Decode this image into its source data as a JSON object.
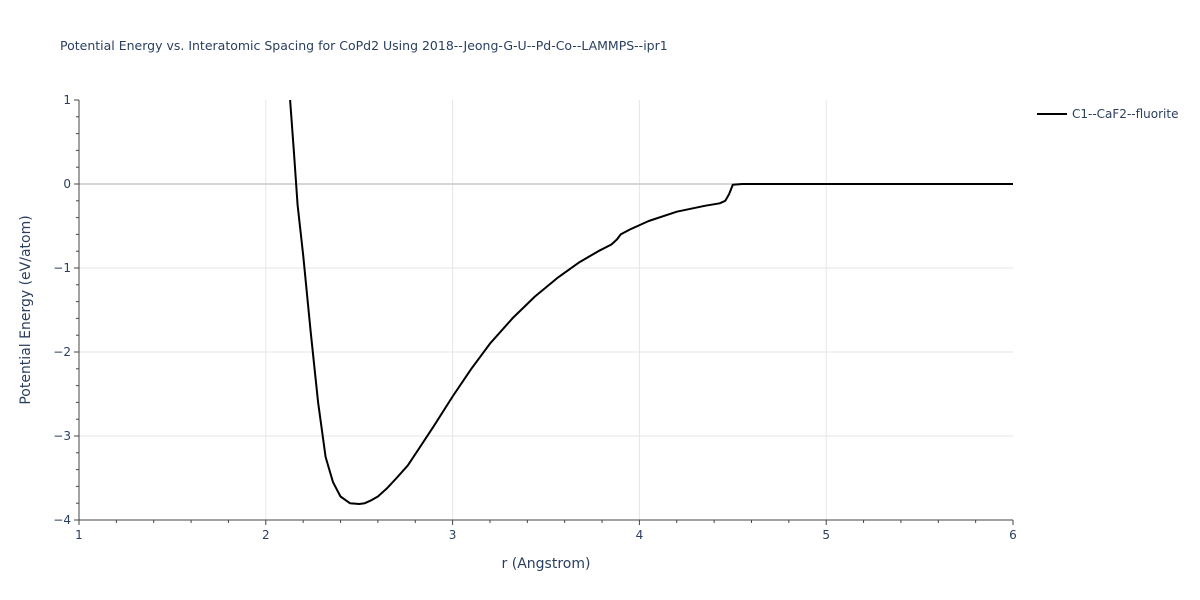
{
  "chart_data": {
    "type": "line",
    "title": "Potential Energy vs. Interatomic Spacing for CoPd2 Using 2018--Jeong-G-U--Pd-Co--LAMMPS--ipr1",
    "xlabel": "r (Angstrom)",
    "ylabel": "Potential Energy (eV/atom)",
    "xlim": [
      1,
      6
    ],
    "ylim": [
      -4,
      1
    ],
    "xticks": [
      1,
      2,
      3,
      4,
      5,
      6
    ],
    "xtick_labels": [
      "1",
      "2",
      "3",
      "4",
      "5",
      "6"
    ],
    "yticks": [
      1,
      0,
      -1,
      -2,
      -3,
      -4
    ],
    "ytick_labels": [
      "1",
      "0",
      "−1",
      "−2",
      "−3",
      "−4"
    ],
    "grid": true,
    "legend_position": "top-right",
    "series": [
      {
        "name": "C1--CaF2--fluorite",
        "color": "#000000",
        "x": [
          2.13,
          2.15,
          2.17,
          2.2,
          2.24,
          2.28,
          2.32,
          2.36,
          2.4,
          2.45,
          2.5,
          2.53,
          2.56,
          2.6,
          2.65,
          2.7,
          2.76,
          2.82,
          2.9,
          3.0,
          3.1,
          3.2,
          3.32,
          3.44,
          3.56,
          3.68,
          3.78,
          3.85,
          3.88,
          3.9,
          3.95,
          4.05,
          4.2,
          4.35,
          4.43,
          4.46,
          4.48,
          4.5,
          4.55,
          5.0,
          5.5,
          6.0
        ],
        "y": [
          1.0,
          0.4,
          -0.25,
          -0.85,
          -1.75,
          -2.6,
          -3.25,
          -3.55,
          -3.72,
          -3.8,
          -3.81,
          -3.8,
          -3.77,
          -3.72,
          -3.62,
          -3.5,
          -3.35,
          -3.15,
          -2.88,
          -2.53,
          -2.2,
          -1.9,
          -1.6,
          -1.34,
          -1.12,
          -0.93,
          -0.8,
          -0.72,
          -0.66,
          -0.6,
          -0.54,
          -0.44,
          -0.33,
          -0.26,
          -0.23,
          -0.2,
          -0.12,
          -0.01,
          0.0,
          0.0,
          0.0,
          0.0
        ]
      }
    ]
  }
}
